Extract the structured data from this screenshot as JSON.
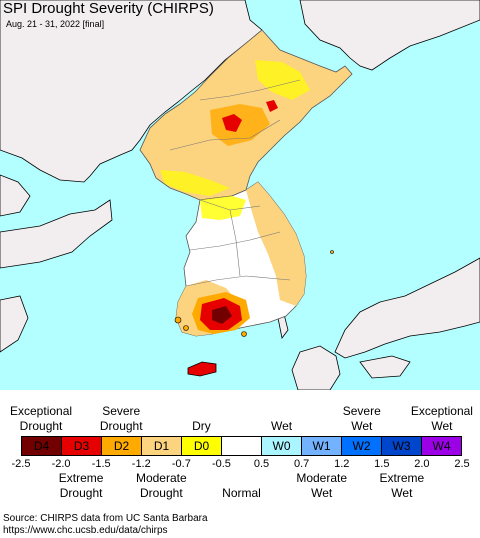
{
  "header": {
    "title": "SPI Drought Severity (CHIRPS)",
    "subtitle": "Aug. 21 - 31, 2022 [final]"
  },
  "map": {
    "sea_color": "#b3ffff",
    "land_color": "#f2eef0",
    "border_color": "#000000"
  },
  "legend": {
    "top_labels": [
      {
        "text": "Exceptional\nDrought",
        "at": -2.25
      },
      {
        "text": "Severe\nDrought",
        "at": -1.35
      },
      {
        "text": "Dry",
        "at": -0.6
      },
      {
        "text": "Wet",
        "at": 0.6
      },
      {
        "text": "Severe\nWet",
        "at": 1.35
      },
      {
        "text": "Exceptional\nWet",
        "at": 2.25
      }
    ],
    "bottom_labels": [
      {
        "text": "Extreme\nDrought",
        "at": -1.75
      },
      {
        "text": "Moderate\nDrought",
        "at": -0.95
      },
      {
        "text": "Normal",
        "at": 0
      },
      {
        "text": "Moderate\nWet",
        "at": 0.95
      },
      {
        "text": "Extreme\nWet",
        "at": 1.75
      }
    ],
    "categories": [
      {
        "code": "D4",
        "color": "#730000"
      },
      {
        "code": "D3",
        "color": "#e60000"
      },
      {
        "code": "D2",
        "color": "#ffaa00"
      },
      {
        "code": "D1",
        "color": "#fcd37f"
      },
      {
        "code": "D0",
        "color": "#ffff00"
      },
      {
        "code": "",
        "color": "#ffffff"
      },
      {
        "code": "W0",
        "color": "#aaf5ff"
      },
      {
        "code": "W1",
        "color": "#73b2ff"
      },
      {
        "code": "W2",
        "color": "#0070ff"
      },
      {
        "code": "W3",
        "color": "#0046cc"
      },
      {
        "code": "W4",
        "color": "#9c00e6"
      }
    ],
    "ticks": [
      "-2.5",
      "-2.0",
      "-1.5",
      "-1.2",
      "-0.7",
      "-0.5",
      "0.5",
      "0.7",
      "1.2",
      "1.5",
      "2.0",
      "2.5"
    ]
  },
  "footer": {
    "source_line1": "Source: CHIRPS data from UC Santa Barbara",
    "source_line2": "https://www.chc.ucsb.edu/data/chirps"
  }
}
